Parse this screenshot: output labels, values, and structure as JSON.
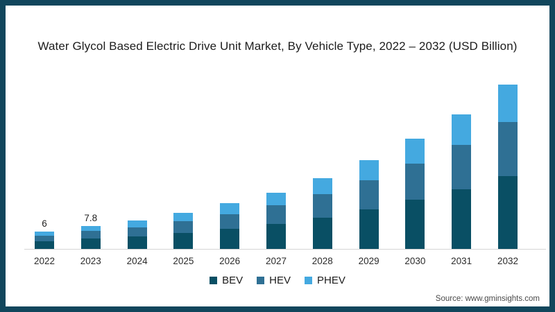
{
  "page": {
    "title": "Water Glycol Based Electric Drive Unit Market, By Vehicle Type, 2022 – 2032 (USD Billion)",
    "source": "Source: www.gminsights.com"
  },
  "colors": {
    "frame_border": "#11465c",
    "bev": "#094f64",
    "hev": "#2f7094",
    "phev": "#44a9e0",
    "axis_line": "#d5d5d5",
    "title_text": "#1c1c1c"
  },
  "chart_data": {
    "type": "bar",
    "stacked": true,
    "title": "Water Glycol Based Electric Drive Unit Market, By Vehicle Type, 2022 – 2032 (USD Billion)",
    "xlabel": "",
    "ylabel": "USD Billion",
    "categories": [
      "2022",
      "2023",
      "2024",
      "2025",
      "2026",
      "2027",
      "2028",
      "2029",
      "2030",
      "2031",
      "2032"
    ],
    "series": [
      {
        "name": "BEV",
        "color": "#094f64",
        "values": [
          2.7,
          3.6,
          4.4,
          5.5,
          7.0,
          8.6,
          10.8,
          13.6,
          16.9,
          20.5,
          25.1
        ]
      },
      {
        "name": "HEV",
        "color": "#2f7094",
        "values": [
          1.9,
          2.5,
          3.1,
          4.0,
          5.0,
          6.3,
          7.9,
          10.0,
          12.4,
          15.2,
          18.5
        ]
      },
      {
        "name": "PHEV",
        "color": "#44a9e0",
        "values": [
          1.4,
          1.7,
          2.3,
          2.8,
          3.6,
          4.4,
          5.5,
          6.9,
          8.6,
          10.5,
          12.9
        ]
      }
    ],
    "totals": [
      6.0,
      7.8,
      9.8,
      12.3,
      15.6,
      19.3,
      24.2,
      30.5,
      37.9,
      46.2,
      56.5
    ],
    "data_labels": {
      "2022": "6",
      "2023": "7.8"
    },
    "ylim": [
      0,
      60
    ],
    "grid": false,
    "legend_position": "bottom",
    "y_axis_shown": false
  },
  "legend": {
    "items": [
      {
        "label": "BEV"
      },
      {
        "label": "HEV"
      },
      {
        "label": "PHEV"
      }
    ]
  }
}
